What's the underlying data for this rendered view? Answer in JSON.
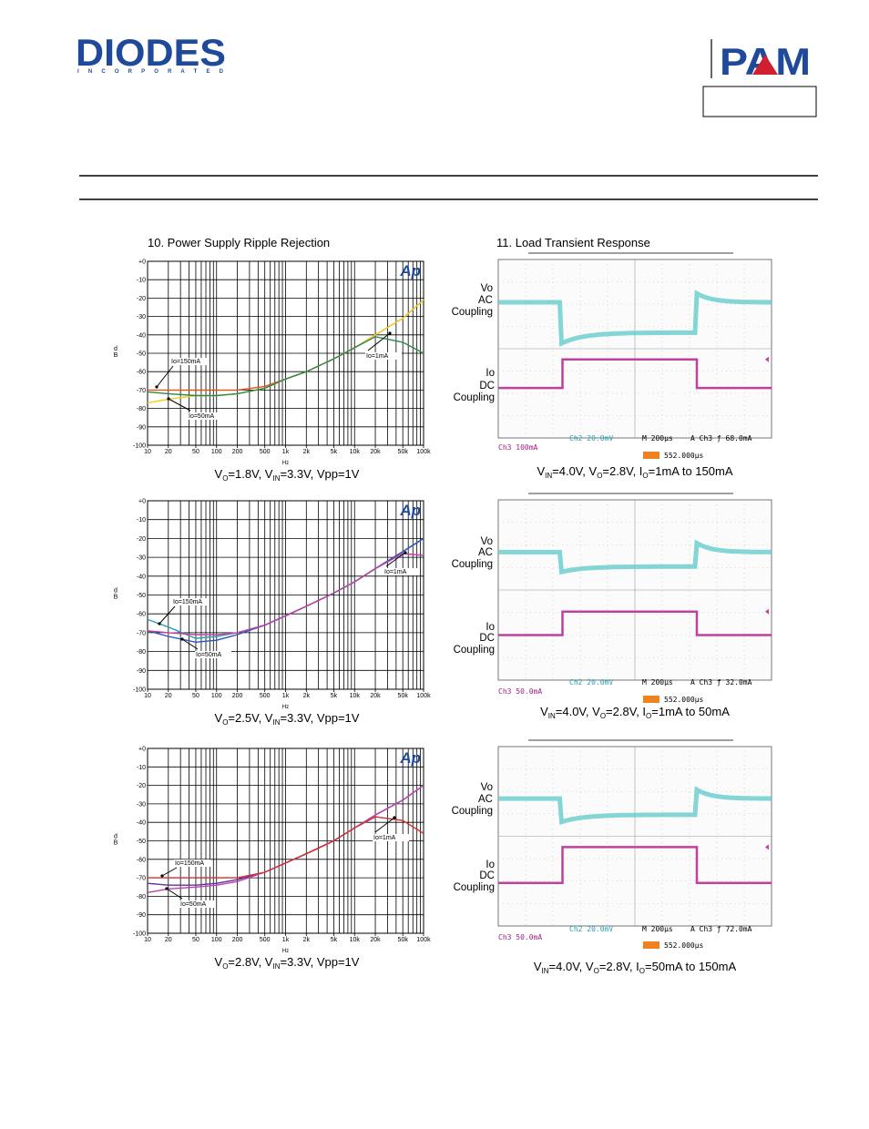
{
  "header": {
    "logo": "DIODES",
    "logo_sub": "I N C O R P O R A T E D",
    "brand": "PAM"
  },
  "sections": [
    {
      "title": "10. Power Supply Ripple Rejection"
    },
    {
      "title": "11. Load Transient Response"
    }
  ],
  "chart_data": [
    {
      "type": "line",
      "xlog": true,
      "xlim": [
        10,
        100000
      ],
      "ylim": [
        -100,
        0
      ],
      "xlabel": "Hz",
      "ylabel": "dB",
      "logo": "Ap",
      "grid": true,
      "xticks": [
        10,
        20,
        50,
        100,
        200,
        500,
        {
          "value": 1000,
          "label": "1k"
        },
        {
          "value": 2000,
          "label": "2k"
        },
        {
          "value": 5000,
          "label": "5k"
        },
        {
          "value": 10000,
          "label": "10k"
        },
        {
          "value": 20000,
          "label": "20k"
        },
        {
          "value": 50000,
          "label": "50k"
        },
        {
          "value": 100000,
          "label": "100k"
        }
      ],
      "yticks": [
        {
          "value": 0,
          "label": "+0"
        },
        -10,
        -20,
        -30,
        -40,
        -50,
        -60,
        -70,
        -80,
        -90,
        -100
      ],
      "xgrid": [
        10,
        20,
        30,
        40,
        50,
        60,
        70,
        80,
        90,
        100,
        200,
        300,
        400,
        500,
        600,
        700,
        800,
        900,
        1000,
        2000,
        3000,
        4000,
        5000,
        6000,
        7000,
        8000,
        9000,
        10000,
        20000,
        30000,
        40000,
        50000,
        60000,
        70000,
        80000,
        90000,
        100000
      ],
      "x": [
        10,
        20,
        50,
        100,
        200,
        500,
        1000,
        2000,
        5000,
        10000,
        20000,
        50000,
        100000
      ],
      "series": [
        {
          "name": "Io=150mA",
          "color": "#e8501a",
          "values": [
            -70,
            -70,
            -70,
            -70,
            -70,
            -68,
            -64,
            -60,
            -53,
            -47,
            -40,
            -31,
            -21
          ]
        },
        {
          "name": "Io=50mA",
          "color": "#f0d020",
          "values": [
            -77,
            -75,
            -73,
            -73,
            -72,
            -69,
            -64,
            -60,
            -53,
            -47,
            -40,
            -31,
            -21
          ]
        },
        {
          "name": "Io=1mA",
          "color": "#2a8a4a",
          "values": [
            -71,
            -72,
            -73,
            -73,
            -72,
            -69,
            -64,
            -60,
            -53,
            -47,
            -41,
            -44,
            -50
          ]
        }
      ],
      "caption": [
        "V",
        "O",
        "=1.8V, V",
        "IN",
        "=3.3V, Vpp=1V"
      ]
    },
    {
      "type": "line",
      "xlog": true,
      "xlim": [
        10,
        100000
      ],
      "ylim": [
        -100,
        0
      ],
      "xlabel": "Hz",
      "ylabel": "dB",
      "logo": "Ap",
      "grid": true,
      "xticks": [
        10,
        20,
        50,
        100,
        200,
        500,
        {
          "value": 1000,
          "label": "1k"
        },
        {
          "value": 2000,
          "label": "2k"
        },
        {
          "value": 5000,
          "label": "5k"
        },
        {
          "value": 10000,
          "label": "10k"
        },
        {
          "value": 20000,
          "label": "20k"
        },
        {
          "value": 50000,
          "label": "50k"
        },
        {
          "value": 100000,
          "label": "100k"
        }
      ],
      "yticks": [
        {
          "value": 0,
          "label": "+0"
        },
        -10,
        -20,
        -30,
        -40,
        -50,
        -60,
        -70,
        -80,
        -90,
        -100
      ],
      "xgrid": [
        10,
        20,
        30,
        40,
        50,
        60,
        70,
        80,
        90,
        100,
        200,
        300,
        400,
        500,
        600,
        700,
        800,
        900,
        1000,
        2000,
        3000,
        4000,
        5000,
        6000,
        7000,
        8000,
        9000,
        10000,
        20000,
        30000,
        40000,
        50000,
        60000,
        70000,
        80000,
        90000,
        100000
      ],
      "x": [
        10,
        20,
        50,
        100,
        200,
        500,
        1000,
        2000,
        5000,
        10000,
        20000,
        50000,
        100000
      ],
      "series": [
        {
          "name": "Io=150mA",
          "color": "#2aa0b0",
          "values": [
            -63,
            -67,
            -73,
            -72,
            -70,
            -66,
            -61,
            -56,
            -49,
            -43,
            -36,
            -27,
            -20
          ]
        },
        {
          "name": "Io=50mA",
          "color": "#3050c0",
          "values": [
            -69,
            -72,
            -75,
            -74,
            -71,
            -66,
            -61,
            -56,
            -49,
            -43,
            -36,
            -27,
            -20
          ]
        },
        {
          "name": "Io=1mA",
          "color": "#c040a0",
          "values": [
            -69,
            -70,
            -71,
            -71,
            -70,
            -66,
            -61,
            -56,
            -49,
            -43,
            -36,
            -28,
            -29
          ]
        }
      ],
      "caption": [
        "V",
        "O",
        "=2.5V, V",
        "IN",
        "=3.3V, Vpp=1V"
      ]
    },
    {
      "type": "line",
      "xlog": true,
      "xlim": [
        10,
        100000
      ],
      "ylim": [
        -100,
        0
      ],
      "xlabel": "Hz",
      "ylabel": "dB",
      "logo": "Ap",
      "grid": true,
      "xticks": [
        10,
        20,
        50,
        100,
        200,
        500,
        {
          "value": 1000,
          "label": "1k"
        },
        {
          "value": 2000,
          "label": "2k"
        },
        {
          "value": 5000,
          "label": "5k"
        },
        {
          "value": 10000,
          "label": "10k"
        },
        {
          "value": 20000,
          "label": "20k"
        },
        {
          "value": 50000,
          "label": "50k"
        },
        {
          "value": 100000,
          "label": "100k"
        }
      ],
      "yticks": [
        {
          "value": 0,
          "label": "+0"
        },
        -10,
        -20,
        -30,
        -40,
        -50,
        -60,
        -70,
        -80,
        -90,
        -100
      ],
      "xgrid": [
        10,
        20,
        30,
        40,
        50,
        60,
        70,
        80,
        90,
        100,
        200,
        300,
        400,
        500,
        600,
        700,
        800,
        900,
        1000,
        2000,
        3000,
        4000,
        5000,
        6000,
        7000,
        8000,
        9000,
        10000,
        20000,
        30000,
        40000,
        50000,
        60000,
        70000,
        80000,
        90000,
        100000
      ],
      "x": [
        10,
        20,
        50,
        100,
        200,
        500,
        1000,
        2000,
        5000,
        10000,
        20000,
        50000,
        100000
      ],
      "series": [
        {
          "name": "Io=150mA",
          "color": "#6030a0",
          "values": [
            -73,
            -74,
            -74,
            -73,
            -71,
            -67,
            -62,
            -57,
            -50,
            -43,
            -36,
            -28,
            -20
          ]
        },
        {
          "name": "Io=50mA",
          "color": "#c040b0",
          "values": [
            -78,
            -76,
            -75,
            -74,
            -72,
            -67,
            -62,
            -57,
            -50,
            -43,
            -36,
            -28,
            -20
          ]
        },
        {
          "name": "Io=1mA",
          "color": "#d03030",
          "values": [
            -70,
            -70,
            -70,
            -70,
            -70,
            -67,
            -62,
            -57,
            -50,
            -43,
            -37,
            -39,
            -46
          ]
        }
      ],
      "caption": [
        "V",
        "O",
        "=2.8V, V",
        "IN",
        "=3.3V, Vpp=1V"
      ]
    }
  ],
  "scopes": [
    {
      "vo_labels": [
        "Vo",
        "AC",
        "Coupling"
      ],
      "io_labels": [
        "Io",
        "DC",
        "Coupling"
      ],
      "ch3": "Ch3  100mA",
      "ch2": "Ch2  20.0mV",
      "time": "M 200µs",
      "trigger": "A  Ch3 ƒ 68.0mA",
      "position": "552.000µs",
      "caption": [
        "V",
        "IN",
        "=4.0V, V",
        "O",
        "=2.8V, I",
        "O",
        "=1mA to 150mA"
      ]
    },
    {
      "vo_labels": [
        "Vo",
        "AC",
        "Coupling"
      ],
      "io_labels": [
        "Io",
        "DC",
        "Coupling"
      ],
      "ch3": "Ch3  50.0mA",
      "ch2": "Ch2  20.0mV",
      "time": "M 200µs",
      "trigger": "A  Ch3 ƒ 32.0mA",
      "position": "552.000µs",
      "caption": [
        "V",
        "IN",
        "=4.0V, V",
        "O",
        "=2.8V, I",
        "O",
        "=1mA to 50mA"
      ]
    },
    {
      "vo_labels": [
        "Vo",
        "AC",
        "Coupling"
      ],
      "io_labels": [
        "Io",
        "DC",
        "Coupling"
      ],
      "ch3": "Ch3  50.0mA",
      "ch2": "Ch2  20.0mV",
      "time": "M 200µs",
      "trigger": "A  Ch3 ƒ 72.0mA",
      "position": "552.000µs",
      "caption": [
        "V",
        "IN",
        "=4.0V, V",
        "O",
        "=2.8V, I",
        "O",
        "=50mA to 150mA"
      ]
    }
  ]
}
